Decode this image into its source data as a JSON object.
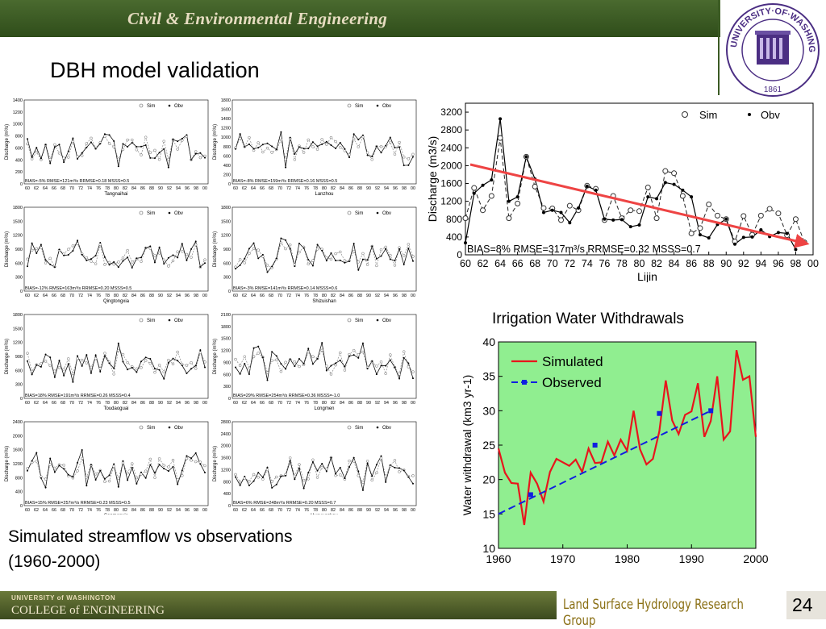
{
  "header": {
    "title": "Civil & Environmental Engineering"
  },
  "slide": {
    "title": "DBH model validation",
    "caption_line1": "Simulated streamflow vs observations",
    "caption_line2": "(1960-2000)",
    "irrigation_title": "Irrigation Water Withdrawals"
  },
  "footer": {
    "uw_small": "UNIVERSITY of WASHINGTON",
    "college": "COLLEGE of ENGINEERING",
    "group": "Land Surface Hydrology Research Group",
    "page": "24"
  },
  "seal": {
    "top_text": "UNIVERSITY·OF·WASHINGTON",
    "year": "1861"
  },
  "colors": {
    "header_green": "#3b5b24",
    "footer_gold": "#8a6f14",
    "irr_bg": "#90ee90",
    "irr_sim": "#e8151c",
    "irr_obs": "#1020e0",
    "trend_arrow": "#ee4444"
  },
  "chart_data": [
    {
      "type": "line",
      "title": "Lijin",
      "xlabel": "Lijin",
      "ylabel": "Discharge (m3/s)",
      "xlim": [
        60,
        100
      ],
      "ylim": [
        0,
        3400
      ],
      "x_tick_labels": [
        "60",
        "62",
        "64",
        "66",
        "68",
        "70",
        "72",
        "74",
        "76",
        "78",
        "80",
        "82",
        "84",
        "86",
        "88",
        "90",
        "92",
        "94",
        "96",
        "98",
        "00"
      ],
      "y_ticks": [
        0,
        400,
        800,
        1200,
        1600,
        2000,
        2400,
        2800,
        3200
      ],
      "legend": [
        "Sim",
        "Obv"
      ],
      "stats": "BIAS=8% RMSE=317m³/s RRMSE=0.32 MSSS=0.7",
      "series": [
        {
          "name": "Sim",
          "x": [
            60,
            61,
            62,
            63,
            64,
            65,
            66,
            67,
            68,
            69,
            70,
            71,
            72,
            73,
            74,
            75,
            76,
            77,
            78,
            79,
            80,
            81,
            82,
            83,
            84,
            85,
            86,
            87,
            88,
            89,
            90,
            91,
            92,
            93,
            94,
            95,
            96,
            97,
            98,
            99
          ],
          "values": [
            820,
            1500,
            1000,
            1320,
            2620,
            820,
            1150,
            2200,
            1530,
            1050,
            1040,
            780,
            1100,
            1000,
            1550,
            1480,
            780,
            1320,
            820,
            1000,
            980,
            1510,
            820,
            1880,
            1830,
            1320,
            480,
            600,
            1130,
            880,
            800,
            300,
            870,
            450,
            880,
            1030,
            930,
            440,
            800,
            280
          ]
        },
        {
          "name": "Obv",
          "x": [
            60,
            61,
            62,
            63,
            64,
            65,
            66,
            67,
            68,
            69,
            70,
            71,
            72,
            73,
            74,
            75,
            76,
            77,
            78,
            79,
            80,
            81,
            82,
            83,
            84,
            85,
            86,
            87,
            88,
            89,
            90,
            91,
            92,
            93,
            94,
            95,
            96,
            97,
            98
          ],
          "values": [
            270,
            1380,
            1560,
            1680,
            3050,
            1200,
            1300,
            2200,
            1700,
            950,
            1000,
            950,
            720,
            1050,
            1540,
            1450,
            800,
            780,
            790,
            630,
            670,
            1300,
            1260,
            1620,
            1580,
            1450,
            1300,
            450,
            380,
            680,
            800,
            240,
            390,
            400,
            560,
            410,
            500,
            480,
            120
          ]
        }
      ]
    },
    {
      "type": "line",
      "title": "Irrigation Water Withdrawals",
      "xlabel": "",
      "ylabel": "Water withdrawal (km3 yr-1)",
      "xlim": [
        1960,
        2000
      ],
      "ylim": [
        10,
        40
      ],
      "x_ticks": [
        1960,
        1970,
        1980,
        1990,
        2000
      ],
      "y_ticks": [
        10,
        15,
        20,
        25,
        30,
        35,
        40
      ],
      "series": [
        {
          "name": "Simulated",
          "x": [
            1960,
            1961,
            1962,
            1963,
            1964,
            1965,
            1966,
            1967,
            1968,
            1969,
            1970,
            1971,
            1972,
            1973,
            1974,
            1975,
            1976,
            1977,
            1978,
            1979,
            1980,
            1981,
            1982,
            1983,
            1984,
            1985,
            1986,
            1987,
            1988,
            1989,
            1990,
            1991,
            1992,
            1993,
            1994,
            1995,
            1996,
            1997,
            1998,
            1999,
            2000
          ],
          "values": [
            24.5,
            21,
            19.5,
            19.4,
            13.4,
            21,
            19.4,
            16.8,
            21.1,
            23,
            22.5,
            22,
            22.9,
            21.1,
            24.5,
            22.4,
            22.5,
            25.5,
            23.5,
            25.8,
            24.2,
            30,
            24.4,
            22.2,
            23,
            27,
            34.4,
            28.6,
            26.6,
            29.4,
            29.9,
            34,
            26.2,
            28.5,
            35,
            25.8,
            27,
            38.8,
            34.5,
            35,
            26.2
          ]
        },
        {
          "name": "Observed",
          "x": [
            1965,
            1975,
            1985,
            1993
          ],
          "values": [
            17.8,
            25,
            29.6,
            30
          ]
        },
        {
          "name": "Observed",
          "x": [
            1960,
            1993
          ],
          "values": [
            15,
            30
          ]
        }
      ]
    }
  ],
  "panels": [
    {
      "id": "tangnaihai",
      "station": "Tangnaihai",
      "stats": "BIAS=-5% RMSE=121m³/s RRMSE=0.18 MSSS=0.5",
      "yticks": [
        "0",
        "200",
        "400",
        "600",
        "800",
        "1000",
        "1200",
        "1400"
      ],
      "ymax": 1400
    },
    {
      "id": "lanzhou",
      "station": "Lanzhou",
      "stats": "BIAS=-8% RMSE=159m³/s RRMSE=0.16 MSSS=0.5",
      "yticks": [
        "0",
        "200",
        "400",
        "600",
        "800",
        "1000",
        "1200",
        "1400",
        "1600",
        "1800"
      ],
      "ymax": 1800
    },
    {
      "id": "qingtongxia",
      "station": "Qingtongxia",
      "stats": "BIAS=-12% RMSE=163m³/s RRMSE=0.20 MSSS=0.5",
      "yticks": [
        "0",
        "300",
        "600",
        "900",
        "1200",
        "1500",
        "1800"
      ],
      "ymax": 1800
    },
    {
      "id": "shizuishan",
      "station": "Shizuishan",
      "stats": "BIAS=-3% RMSE=141m³/s RRMSE=0.14 MSSS=0.6",
      "yticks": [
        "0",
        "300",
        "600",
        "900",
        "1200",
        "1500",
        "1800"
      ],
      "ymax": 1800
    },
    {
      "id": "toudaoguai",
      "station": "Toudaoguai",
      "stats": "BIAS=18% RMSE=191m³/s RRMSE=0.26 MSSS=0.4",
      "yticks": [
        "0",
        "300",
        "600",
        "900",
        "1200",
        "1500",
        "1800"
      ],
      "ymax": 1800
    },
    {
      "id": "longmen",
      "station": "Longmen",
      "stats": "BIAS=29% RMSE=254m³/s RRMSE=0.36 MSSS=-1.0",
      "yticks": [
        "0",
        "300",
        "600",
        "900",
        "1200",
        "1500",
        "1800",
        "2100"
      ],
      "ymax": 2100
    },
    {
      "id": "sanmenxia",
      "station": "Sanmenxia",
      "stats": "BIAS=15% RMSE=257m³/s RRMSE=0.23 MSSS=0.5",
      "yticks": [
        "0",
        "400",
        "800",
        "1200",
        "1600",
        "2000",
        "2400"
      ],
      "ymax": 2400
    },
    {
      "id": "huayuankou",
      "station": "Huayuankou",
      "stats": "BIAS=6% RMSE=248m³/s RRMSE=0.20 MSSS=0.7",
      "yticks": [
        "0",
        "400",
        "800",
        "1200",
        "1600",
        "2000",
        "2400",
        "2800"
      ],
      "ymax": 2800
    }
  ],
  "panel_common": {
    "ylabel": "Discharge (m³/s)",
    "legend_sim": "Sim",
    "legend_obv": "Obv",
    "x_tick_labels": [
      "60",
      "62",
      "64",
      "66",
      "68",
      "70",
      "72",
      "74",
      "76",
      "78",
      "80",
      "82",
      "84",
      "86",
      "88",
      "90",
      "92",
      "94",
      "96",
      "98",
      "00"
    ]
  }
}
